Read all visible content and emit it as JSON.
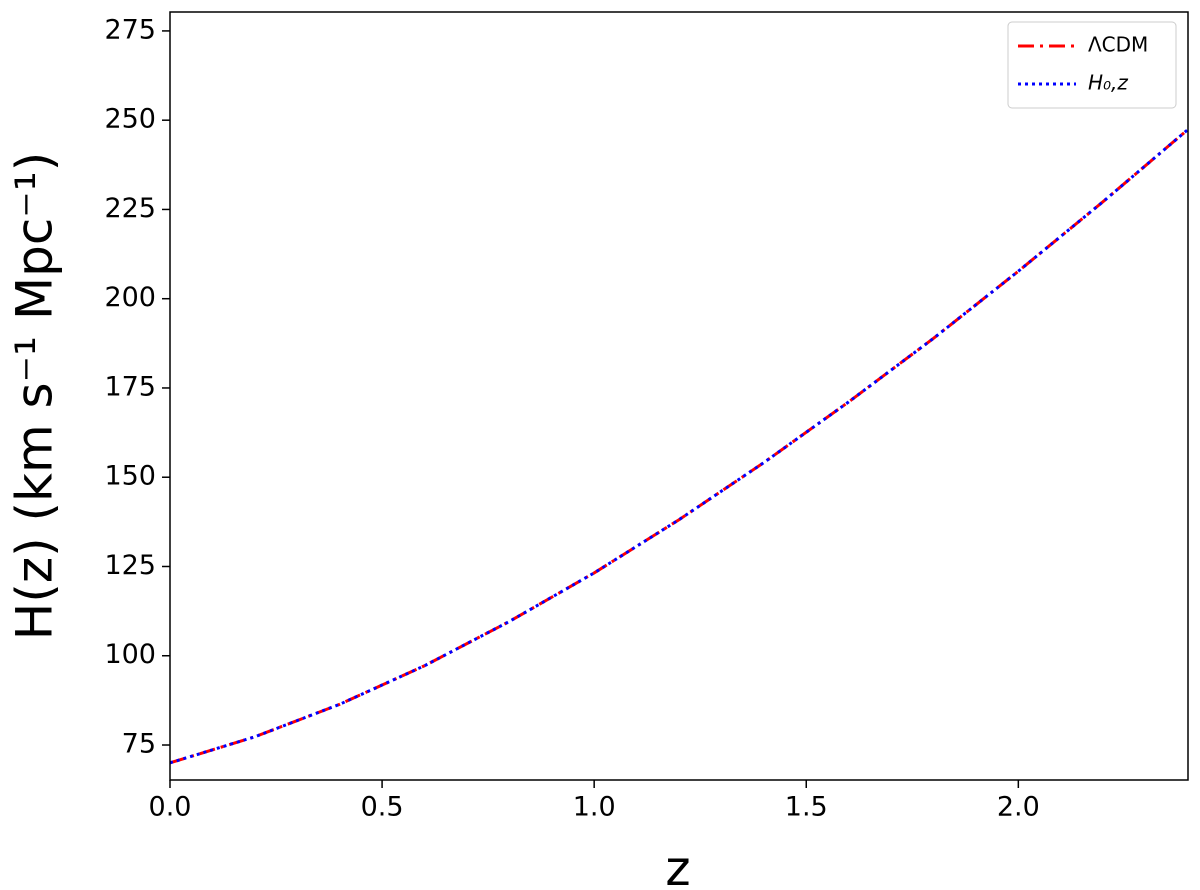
{
  "chart_data": {
    "type": "line",
    "xlabel": "z",
    "ylabel": "H(z) (km s⁻¹ Mpc⁻¹)",
    "x": [
      0,
      0.2,
      0.4,
      0.6,
      0.8,
      1.0,
      1.2,
      1.4,
      1.6,
      1.8,
      2.0,
      2.2,
      2.4
    ],
    "series": [
      {
        "name": "ΛCDM",
        "color": "#ff0000",
        "dash": "16 6 3 6",
        "values": [
          70,
          77.3,
          86.4,
          97.2,
          109.6,
          123.2,
          138.1,
          154.1,
          171.1,
          188.9,
          207.7,
          227.2,
          247.4
        ]
      },
      {
        "name": "H₀,z",
        "color": "#0000ff",
        "dash": "3 4",
        "values": [
          70,
          77.3,
          86.4,
          97.2,
          109.6,
          123.2,
          138.1,
          154.1,
          171.1,
          188.9,
          207.7,
          227.2,
          247.4
        ]
      }
    ],
    "xlim": [
      0,
      2.4
    ],
    "ylim": [
      65.2,
      280.3
    ],
    "xticks": [
      {
        "value": 0,
        "label": "0.0"
      },
      0.5,
      {
        "value": 1,
        "label": "1.0"
      },
      1.5,
      {
        "value": 2,
        "label": "2.0"
      }
    ],
    "yticks": [
      75,
      100,
      125,
      150,
      175,
      200,
      225,
      250,
      275
    ],
    "legend": "upper right",
    "grid": false
  }
}
